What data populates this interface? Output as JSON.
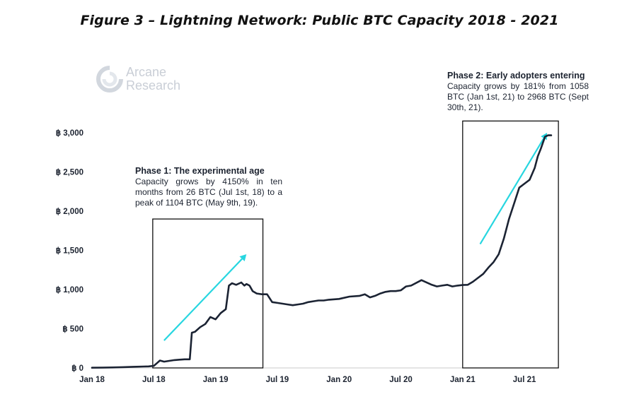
{
  "chart_data": {
    "type": "line",
    "title": "Figure 3 – Lightning Network: Public BTC Capacity 2018 - 2021",
    "xlabel": "",
    "ylabel": "",
    "ylim": [
      0,
      3000
    ],
    "yticks": [
      0,
      500,
      1000,
      1500,
      2000,
      2500,
      3000
    ],
    "ytick_labels": [
      "฿ 0",
      "฿ 500",
      "฿ 1,000",
      "฿ 1,500",
      "฿ 2,000",
      "฿ 2,500",
      "฿ 3,000"
    ],
    "xticks": [
      "Jan 18",
      "Jul 18",
      "Jan 19",
      "Jul 19",
      "Jan 20",
      "Jul 20",
      "Jan 21",
      "Jul 21"
    ],
    "series": [
      {
        "name": "Public BTC Capacity",
        "color": "#1b2333",
        "x_months": [
          0,
          1,
          2,
          3,
          4,
          5,
          5.5,
          6,
          6.3,
          6.6,
          7,
          7.5,
          8,
          8.5,
          9,
          9.5,
          9.7,
          10,
          10.5,
          11,
          11.5,
          12,
          12.5,
          13,
          13.3,
          13.6,
          14,
          14.5,
          14.8,
          15,
          15.3,
          15.6,
          16,
          16.5,
          17,
          17.5,
          18,
          18.5,
          19,
          19.5,
          20,
          20.5,
          21,
          21.5,
          22,
          22.5,
          23,
          24,
          25,
          26,
          26.5,
          27,
          27.5,
          28,
          28.5,
          29,
          29.5,
          30,
          30.5,
          31,
          32,
          33,
          33.5,
          34,
          34.5,
          35,
          35.5,
          36,
          36.5,
          37,
          37.5,
          38,
          38.5,
          39,
          39.5,
          40,
          40.5,
          41,
          41.5,
          42,
          42.5,
          43,
          43.3,
          43.6,
          44,
          44.3,
          44.6
        ],
        "values": [
          3,
          4,
          6,
          10,
          14,
          18,
          20,
          26,
          60,
          95,
          80,
          90,
          100,
          105,
          110,
          110,
          450,
          460,
          520,
          560,
          650,
          620,
          700,
          750,
          1050,
          1080,
          1060,
          1090,
          1050,
          1070,
          1050,
          980,
          950,
          940,
          940,
          840,
          830,
          820,
          810,
          800,
          810,
          820,
          840,
          850,
          860,
          860,
          870,
          880,
          910,
          920,
          940,
          900,
          920,
          950,
          970,
          980,
          980,
          990,
          1040,
          1050,
          1120,
          1060,
          1040,
          1050,
          1060,
          1040,
          1050,
          1058,
          1060,
          1100,
          1150,
          1200,
          1280,
          1350,
          1450,
          1650,
          1900,
          2100,
          2300,
          2350,
          2400,
          2550,
          2700,
          2800,
          2950,
          2968,
          2968
        ]
      }
    ],
    "annotations": [
      {
        "label": "phase-1-box",
        "x_range_months": [
          5.9,
          16.6
        ],
        "y_range": [
          0,
          1900
        ]
      },
      {
        "label": "phase-2-box",
        "x_range_months": [
          36.0,
          45.3
        ],
        "y_range": [
          0,
          3150
        ]
      },
      {
        "label": "phase-1-arrow",
        "from": [
          7.0,
          350
        ],
        "to": [
          15.0,
          1450
        ]
      },
      {
        "label": "phase-2-arrow",
        "from": [
          37.7,
          1580
        ],
        "to": [
          44.2,
          3000
        ]
      }
    ]
  },
  "header": {
    "title": "Figure 3 – Lightning Network: Public BTC Capacity 2018 - 2021"
  },
  "logo": {
    "line1": "Arcane",
    "line2": "Research"
  },
  "notes": {
    "phase1_head": "Phase 1: The experimental age",
    "phase1_body": "Capacity grows by 4150% in ten months from 26 BTC (Jul 1st, 18) to a peak of 1104 BTC (May 9th, 19).",
    "phase2_head": "Phase 2: Early adopters entering",
    "phase2_body": "Capacity grows by 181% from 1058 BTC (Jan 1st, 21) to 2968 BTC (Sept 30th, 21)."
  },
  "colors": {
    "line": "#1b2333",
    "arrow": "#27d6e0",
    "box": "#111111",
    "logo": "#c9ced6"
  }
}
